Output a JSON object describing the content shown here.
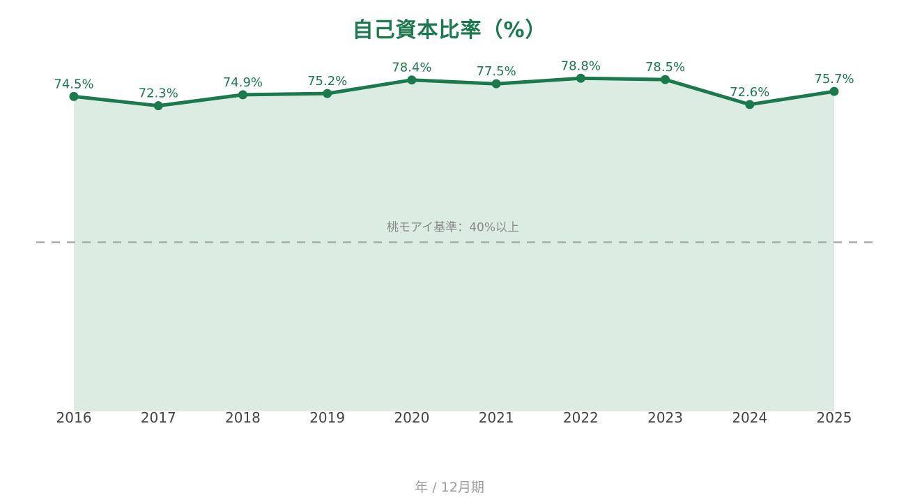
{
  "chart_data": {
    "type": "area",
    "title": "自己資本比率（%）",
    "xlabel": "年 / 12月期",
    "ylabel": "",
    "categories": [
      "2016",
      "2017",
      "2018",
      "2019",
      "2020",
      "2021",
      "2022",
      "2023",
      "2024",
      "2025"
    ],
    "series": [
      {
        "values": [
          74.5,
          72.3,
          74.9,
          75.2,
          78.4,
          77.5,
          78.8,
          78.5,
          72.6,
          75.7
        ],
        "labels": [
          "74.5%",
          "72.3%",
          "74.9%",
          "75.2%",
          "78.4%",
          "77.5%",
          "78.8%",
          "78.5%",
          "72.6%",
          "75.7%"
        ],
        "color": "#1a7a4c",
        "fill_color": "#dcece3"
      }
    ],
    "reference_line": {
      "value": 40,
      "label": "桃モアイ基準：40%以上",
      "color": "#aaaaaa",
      "style": "dashed"
    },
    "ylim": [
      0,
      80
    ],
    "grid": false,
    "legend": "none"
  }
}
